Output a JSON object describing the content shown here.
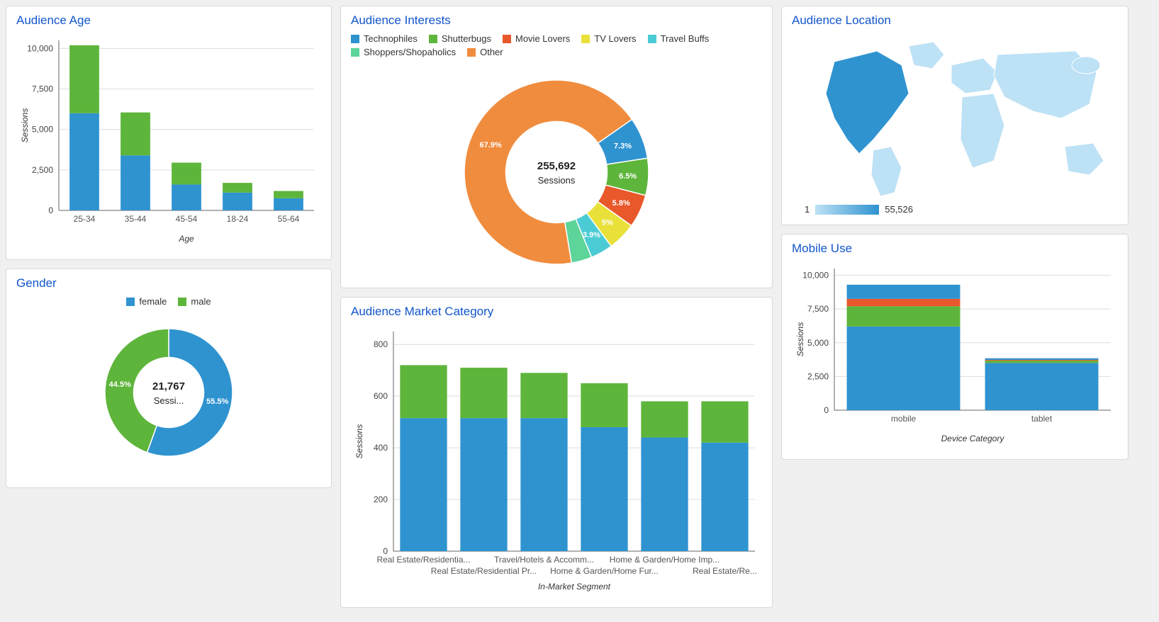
{
  "palette": {
    "blue": "#2f93d0",
    "green": "#5eb53b",
    "orange": "#f08c3e",
    "red": "#e8582b",
    "yellow": "#e9e13a",
    "cyan": "#4bcbd4",
    "mint": "#5dd49a",
    "grid": "#dddddd",
    "axis": "#666666",
    "title": "#1155cc",
    "bg": "#ffffff"
  },
  "audience_age": {
    "title": "Audience Age",
    "type": "stacked-bar",
    "xlabel": "Age",
    "ylabel": "Sessions",
    "ylim": [
      0,
      10500
    ],
    "yticks": [
      0,
      2500,
      5000,
      7500,
      10000
    ],
    "categories": [
      "25-34",
      "35-44",
      "45-54",
      "18-24",
      "55-64"
    ],
    "series": [
      {
        "name": "female",
        "color": "#2f93d0",
        "values": [
          6000,
          3400,
          1600,
          1100,
          750
        ]
      },
      {
        "name": "male",
        "color": "#5eb53b",
        "values": [
          4200,
          2650,
          1350,
          600,
          450
        ]
      }
    ],
    "bar_width": 0.58
  },
  "gender": {
    "title": "Gender",
    "type": "donut",
    "legend": [
      {
        "label": "female",
        "color": "#2f93d0"
      },
      {
        "label": "male",
        "color": "#5eb53b"
      }
    ],
    "center_value": "21,767",
    "center_label": "Sessi...",
    "segments": [
      {
        "label": "55.5%",
        "value": 55.5,
        "color": "#2f93d0"
      },
      {
        "label": "44.5%",
        "value": 44.5,
        "color": "#5eb53b"
      }
    ],
    "inner_ratio": 0.55
  },
  "audience_interests": {
    "title": "Audience Interests",
    "type": "donut",
    "legend": [
      {
        "label": "Technophiles",
        "color": "#2f93d0"
      },
      {
        "label": "Shutterbugs",
        "color": "#5eb53b"
      },
      {
        "label": "Movie Lovers",
        "color": "#e8582b"
      },
      {
        "label": "TV Lovers",
        "color": "#e9e13a"
      },
      {
        "label": "Travel Buffs",
        "color": "#4bcbd4"
      },
      {
        "label": "Shoppers/Shopaholics",
        "color": "#5dd49a"
      },
      {
        "label": "Other",
        "color": "#f08c3e"
      }
    ],
    "center_value": "255,692",
    "center_label": "Sessions",
    "segments": [
      {
        "label": "7.3%",
        "value": 7.3,
        "color": "#2f93d0"
      },
      {
        "label": "6.5%",
        "value": 6.5,
        "color": "#5eb53b"
      },
      {
        "label": "5.8%",
        "value": 5.8,
        "color": "#e8582b"
      },
      {
        "label": "5%",
        "value": 5.0,
        "color": "#e9e13a"
      },
      {
        "label": "3.9%",
        "value": 3.9,
        "color": "#4bcbd4"
      },
      {
        "label": "",
        "value": 3.6,
        "color": "#5dd49a"
      },
      {
        "label": "67.9%",
        "value": 67.9,
        "color": "#f08c3e"
      }
    ],
    "inner_ratio": 0.55,
    "start_angle_deg": -35
  },
  "audience_market": {
    "title": "Audience Market Category",
    "type": "stacked-bar",
    "xlabel": "In-Market Segment",
    "ylabel": "Sessions",
    "ylim": [
      0,
      850
    ],
    "yticks": [
      0,
      200,
      400,
      600,
      800
    ],
    "categories_top": [
      "Real Estate/Residentia...",
      "Travel/Hotels & Accomm...",
      "Home & Garden/Home Imp..."
    ],
    "categories_bottom": [
      "Real Estate/Residential Pr...",
      "Home & Garden/Home Fur...",
      "Real Estate/Re..."
    ],
    "series": [
      {
        "name": "s1",
        "color": "#2f93d0",
        "values": [
          515,
          515,
          515,
          480,
          440,
          420
        ]
      },
      {
        "name": "s2",
        "color": "#5eb53b",
        "values": [
          205,
          195,
          175,
          170,
          140,
          160
        ]
      }
    ],
    "bar_width": 0.78
  },
  "audience_location": {
    "title": "Audience Location",
    "type": "choropleth-world",
    "legend_min": "1",
    "legend_max": "55,526",
    "colors": {
      "low": "#bde1f5",
      "high": "#2f93d0"
    }
  },
  "mobile_use": {
    "title": "Mobile Use",
    "type": "stacked-bar",
    "xlabel": "Device Category",
    "ylabel": "Sessions",
    "ylim": [
      0,
      10500
    ],
    "yticks": [
      0,
      2500,
      5000,
      7500,
      10000
    ],
    "categories": [
      "mobile",
      "tablet"
    ],
    "series": [
      {
        "name": "a",
        "color": "#2f93d0",
        "values": [
          6200,
          3500
        ]
      },
      {
        "name": "b",
        "color": "#5eb53b",
        "values": [
          1500,
          170
        ]
      },
      {
        "name": "c",
        "color": "#e8582b",
        "values": [
          550,
          60
        ]
      },
      {
        "name": "d",
        "color": "#2f93d0",
        "values": [
          1050,
          120
        ]
      }
    ],
    "bar_width": 0.82
  }
}
